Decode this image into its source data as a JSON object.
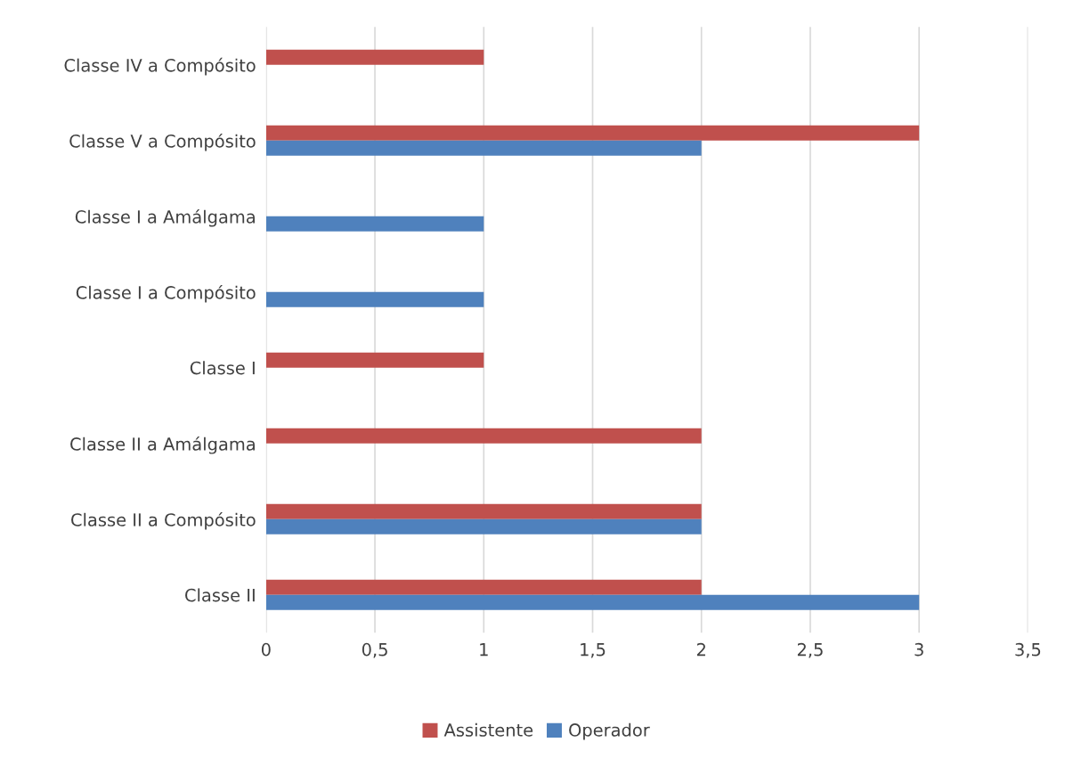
{
  "chart_data": {
    "type": "bar",
    "orientation": "horizontal",
    "categories": [
      "Classe IV a Compósito",
      "Classe V a Compósito",
      "Classe I a Amálgama",
      "Classe I a Compósito",
      "Classe I",
      "Classe II a Amálgama",
      "Classe II a Compósito",
      "Classe II"
    ],
    "series": [
      {
        "name": "Assistente",
        "color": "#c0504d",
        "values": [
          1,
          3,
          null,
          null,
          1,
          2,
          2,
          2
        ]
      },
      {
        "name": "Operador",
        "color": "#4f81bd",
        "values": [
          null,
          2,
          1,
          1,
          null,
          null,
          2,
          3
        ]
      }
    ],
    "xlim": [
      0,
      3.5
    ],
    "xticks": [
      0,
      {
        "value": 0.5,
        "label": "0,5"
      },
      1,
      {
        "value": 1.5,
        "label": "1,5"
      },
      2,
      {
        "value": 2.5,
        "label": "2,5"
      },
      3,
      {
        "value": 3.5,
        "label": "3,5"
      }
    ],
    "grid": "x",
    "legend": "bottom"
  }
}
